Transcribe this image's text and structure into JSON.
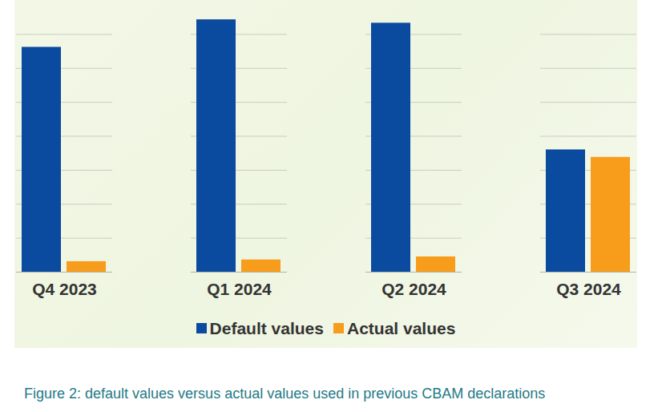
{
  "chart_data": {
    "type": "bar",
    "title": "Figure 2: default values versus actual values used in previous CBAM declarations",
    "categories": [
      "Q4 2023",
      "Q1 2024",
      "Q2 2024",
      "Q3 2024"
    ],
    "series": [
      {
        "name": "Default values",
        "color": "#0a4a9f",
        "values": [
          6.62,
          7.43,
          7.33,
          3.6
        ]
      },
      {
        "name": "Actual values",
        "color": "#f89c1c",
        "values": [
          0.31,
          0.36,
          0.45,
          3.38
        ]
      }
    ],
    "ylim": [
      0,
      8
    ],
    "yticks": [
      0,
      1,
      2,
      3,
      4,
      5,
      6,
      7
    ],
    "grid": true,
    "legend": "bottom",
    "tick_labels": "x"
  }
}
